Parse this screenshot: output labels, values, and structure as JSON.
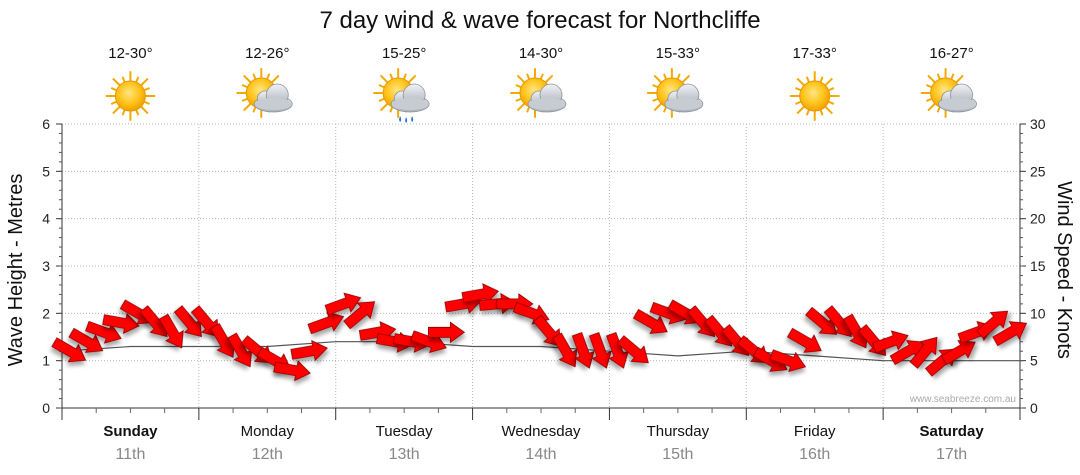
{
  "chart_data": {
    "type": "line",
    "title": "7 day wind & wave forecast for Northcliffe",
    "ylabel_left": "Wave Height - Metres",
    "ylabel_right": "Wind Speed - Knots",
    "ylim_left": [
      0,
      6
    ],
    "ylim_right": [
      0,
      30
    ],
    "yticks_left": [
      "0",
      "1",
      "2",
      "3",
      "4",
      "5",
      "6"
    ],
    "yticks_right": [
      "0",
      "5",
      "10",
      "15",
      "20",
      "25",
      "30"
    ],
    "grid": true,
    "credit": "www.seabreeze.com.au",
    "days": [
      {
        "name": "Sunday",
        "date": "11th",
        "temp": "12-30°",
        "icon": "sun-icon",
        "bold": true
      },
      {
        "name": "Monday",
        "date": "12th",
        "temp": "12-26°",
        "icon": "sun-cloud-icon",
        "bold": false
      },
      {
        "name": "Tuesday",
        "date": "13th",
        "temp": "15-25°",
        "icon": "sun-rain-icon",
        "bold": false
      },
      {
        "name": "Wednesday",
        "date": "14th",
        "temp": "14-30°",
        "icon": "sun-cloud-icon",
        "bold": false
      },
      {
        "name": "Thursday",
        "date": "15th",
        "temp": "15-33°",
        "icon": "sun-cloud-icon",
        "bold": false
      },
      {
        "name": "Friday",
        "date": "16th",
        "temp": "17-33°",
        "icon": "sun-icon",
        "bold": false
      },
      {
        "name": "Saturday",
        "date": "17th",
        "temp": "16-27°",
        "icon": "sun-cloud-icon",
        "bold": true
      }
    ],
    "series": [
      {
        "name": "Wave height (m)",
        "color": "#555555",
        "x": [
          0,
          0.5,
          1,
          1.5,
          2,
          2.5,
          3,
          3.5,
          4,
          4.5,
          5,
          5.5,
          6,
          6.5,
          7
        ],
        "values": [
          1.2,
          1.3,
          1.3,
          1.3,
          1.4,
          1.4,
          1.3,
          1.3,
          1.2,
          1.1,
          1.2,
          1.1,
          1.0,
          1.0,
          1.0
        ]
      },
      {
        "name": "Wind speed (knots)",
        "color": "#ff0000",
        "hours": [
          0,
          3,
          6,
          9,
          12,
          15,
          18,
          21,
          24,
          27,
          30,
          33,
          36,
          39,
          42,
          45,
          48,
          51,
          54,
          57,
          60,
          63,
          66,
          69,
          72,
          75,
          78,
          81,
          84,
          87,
          90,
          93,
          96,
          99,
          102,
          105,
          108,
          111,
          114,
          117,
          120,
          123,
          126,
          129,
          132,
          135,
          138,
          141,
          144,
          147,
          150,
          153,
          156,
          159,
          162,
          165
        ],
        "values": [
          6,
          7,
          8,
          9,
          10,
          9,
          8,
          9,
          9,
          7,
          6,
          6,
          5,
          4,
          6,
          9,
          11,
          10,
          8,
          7,
          7,
          7,
          8,
          11,
          12,
          11,
          11,
          10,
          8,
          6,
          6,
          6,
          6,
          6,
          9,
          10,
          10,
          9,
          8,
          7,
          6,
          5,
          5,
          7,
          9,
          9,
          8,
          7,
          7,
          6,
          6,
          5,
          6,
          8,
          9,
          8
        ],
        "directions_deg": [
          300,
          300,
          290,
          280,
          300,
          320,
          330,
          320,
          320,
          330,
          330,
          310,
          300,
          280,
          260,
          250,
          250,
          230,
          260,
          280,
          280,
          290,
          270,
          260,
          260,
          265,
          270,
          290,
          320,
          330,
          340,
          340,
          340,
          310,
          300,
          290,
          300,
          320,
          320,
          320,
          310,
          300,
          290,
          300,
          310,
          320,
          330,
          320,
          250,
          240,
          220,
          230,
          240,
          250,
          230,
          240
        ]
      }
    ]
  }
}
